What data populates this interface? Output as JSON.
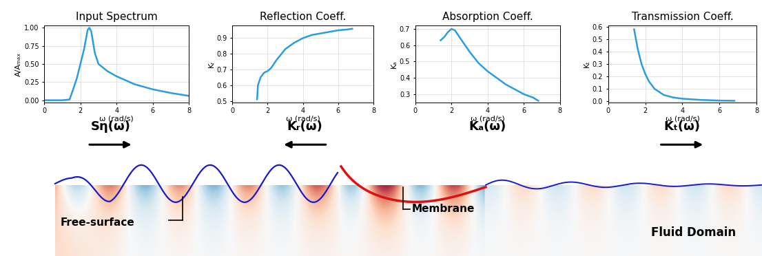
{
  "chart_data": [
    {
      "type": "line",
      "title": "Input Spectrum",
      "x_label": "ω (rad/s)",
      "y_label": "A/Aₘₐₓ",
      "x": [
        0,
        0.5,
        1,
        1.4,
        1.6,
        1.8,
        2.0,
        2.2,
        2.4,
        2.5,
        2.6,
        2.8,
        3.0,
        3.5,
        4,
        5,
        6,
        7,
        8
      ],
      "values": [
        0,
        0,
        0,
        0.01,
        0.15,
        0.3,
        0.5,
        0.7,
        0.97,
        1.0,
        0.95,
        0.65,
        0.5,
        0.4,
        0.33,
        0.22,
        0.15,
        0.1,
        0.06
      ],
      "color": "#2a9de0",
      "grid": true,
      "xlim": [
        0,
        8
      ],
      "xticks": [
        0,
        2,
        4,
        6,
        8
      ],
      "ylim": [
        -0.03,
        1.03
      ],
      "yticks": [
        {
          "value": 0,
          "label": "0.00"
        },
        {
          "value": 0.25,
          "label": "0.25"
        },
        {
          "value": 0.5,
          "label": "0.50"
        },
        {
          "value": 0.75,
          "label": "0.75"
        },
        {
          "value": 1,
          "label": "1.00"
        }
      ]
    },
    {
      "type": "line",
      "title": "Reflection Coeff.",
      "x_label": "ω (rad/s)",
      "y_label": "Kᵣ",
      "x": [
        1.4,
        1.45,
        1.6,
        1.8,
        2.0,
        2.2,
        2.5,
        3,
        3.5,
        4,
        4.5,
        5,
        5.5,
        6,
        6.5,
        6.8
      ],
      "values": [
        0.51,
        0.6,
        0.65,
        0.68,
        0.69,
        0.71,
        0.76,
        0.83,
        0.87,
        0.9,
        0.92,
        0.93,
        0.94,
        0.95,
        0.955,
        0.96
      ],
      "color": "#2a9de0",
      "grid": true,
      "xlim": [
        0,
        8
      ],
      "xticks": [
        0,
        2,
        4,
        6,
        8
      ],
      "ylim": [
        0.49,
        0.98
      ],
      "yticks": [
        0.5,
        0.6,
        0.7,
        0.8,
        0.9
      ]
    },
    {
      "type": "line",
      "title": "Absorption Coeff.",
      "x_label": "ω (rad/s)",
      "y_label": "Kₐ",
      "x": [
        1.4,
        1.6,
        1.8,
        2.0,
        2.2,
        2.5,
        3,
        3.5,
        4,
        4.5,
        5,
        5.5,
        6,
        6.5,
        6.8
      ],
      "values": [
        0.63,
        0.65,
        0.68,
        0.7,
        0.69,
        0.64,
        0.56,
        0.49,
        0.44,
        0.4,
        0.36,
        0.33,
        0.3,
        0.28,
        0.26
      ],
      "color": "#2a9de0",
      "grid": true,
      "xlim": [
        0,
        8
      ],
      "xticks": [
        0,
        2,
        4,
        6,
        8
      ],
      "ylim": [
        0.25,
        0.72
      ],
      "yticks": [
        0.3,
        0.4,
        0.5,
        0.6,
        0.7
      ]
    },
    {
      "type": "line",
      "title": "Transmission Coeff.",
      "x_label": "ω (rad/s)",
      "y_label": "Kₜ",
      "x": [
        1.4,
        1.6,
        1.8,
        2.0,
        2.2,
        2.5,
        3,
        3.5,
        4,
        5,
        6,
        6.8
      ],
      "values": [
        0.58,
        0.42,
        0.3,
        0.22,
        0.16,
        0.1,
        0.05,
        0.03,
        0.02,
        0.01,
        0.005,
        0.003
      ],
      "color": "#2a9de0",
      "grid": true,
      "xlim": [
        0,
        8
      ],
      "xticks": [
        0,
        2,
        4,
        6,
        8
      ],
      "ylim": [
        -0.01,
        0.61
      ],
      "yticks": [
        {
          "value": 0,
          "label": "0.0"
        },
        0.1,
        0.2,
        0.3,
        0.4,
        0.5,
        0.6
      ]
    }
  ],
  "symbols": [
    {
      "text": "Sη(ω)",
      "arrow": "right"
    },
    {
      "text": "Kᵣ(ω)",
      "arrow": "left"
    },
    {
      "text": "Kₐ(ω)",
      "arrow": null
    },
    {
      "text": "Kₜ(ω)",
      "arrow": "right"
    }
  ],
  "diagram": {
    "labels": [
      "Free-surface",
      "Membrane",
      "Fluid Domain"
    ]
  }
}
